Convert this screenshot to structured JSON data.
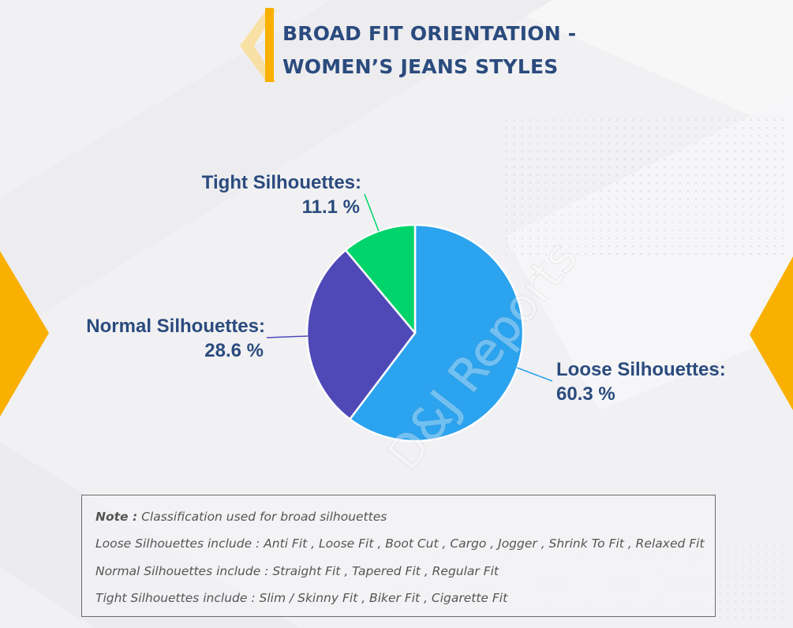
{
  "header": {
    "title_line1": "BROAD FIT ORIENTATION -",
    "title_line2": "WOMEN’S JEANS STYLES",
    "accent_color": "#f9b000"
  },
  "chart_data": {
    "type": "pie",
    "title": "BROAD FIT ORIENTATION - WOMEN’S JEANS STYLES",
    "slices": [
      {
        "label": "Loose Silhouettes:",
        "value": 60.3,
        "value_label": "60.3 %",
        "color": "#2ba3ee"
      },
      {
        "label": "Normal Silhouettes:",
        "value": 28.6,
        "value_label": "28.6 %",
        "color": "#4f49b8"
      },
      {
        "label": "Tight Silhouettes:",
        "value": 11.1,
        "value_label": "11.1 %",
        "color": "#00d46a"
      }
    ]
  },
  "watermark": "D&J Reports",
  "note": {
    "line1_label": "Note :",
    "line1_text": " Classification used for broad silhouettes",
    "line2": "Loose Silhouettes include : Anti Fit , Loose Fit , Boot Cut , Cargo , Jogger , Shrink To Fit , Relaxed Fit",
    "line3": "Normal Silhouettes include : Straight Fit , Tapered Fit , Regular Fit",
    "line4": "Tight Silhouettes include : Slim / Skinny Fit , Biker Fit , Cigarette Fit"
  }
}
